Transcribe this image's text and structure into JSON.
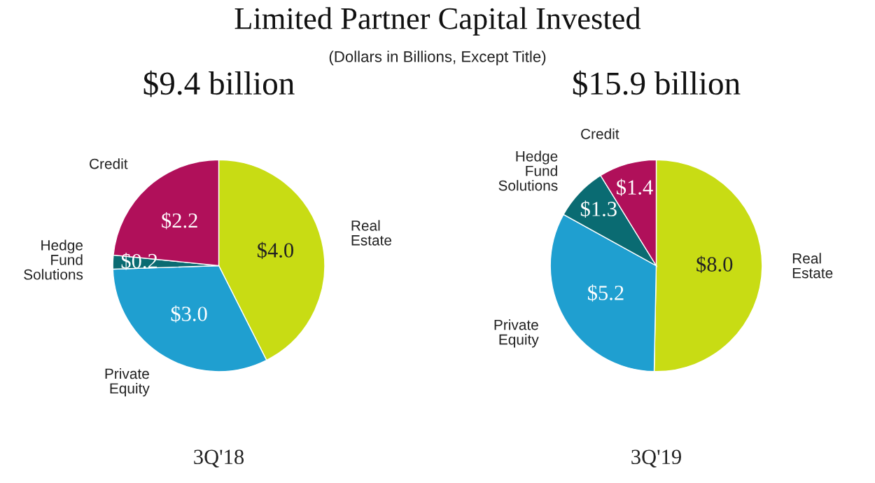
{
  "chart_data": [
    {
      "type": "pie",
      "title": "$9.4 billion",
      "xlabel": "3Q'18",
      "annotations": [
        "Limited Partner Capital Invested",
        "(Dollars in Billions, Except Title)"
      ],
      "categories": [
        "Real\nEstate",
        "Private\nEquity",
        "Hedge\nFund\nSolutions",
        "Credit"
      ],
      "values": [
        4.0,
        3.0,
        0.2,
        2.2
      ],
      "value_labels": [
        "$4.0",
        "$3.0",
        "$0.2",
        "$2.2"
      ],
      "colors": [
        "#c8dc14",
        "#1f9fd0",
        "#0a6b72",
        "#b0105a"
      ]
    },
    {
      "type": "pie",
      "title": "$15.9 billion",
      "xlabel": "3Q'19",
      "categories": [
        "Real\nEstate",
        "Private\nEquity",
        "Hedge\nFund\nSolutions",
        "Credit"
      ],
      "values": [
        8.0,
        5.2,
        1.3,
        1.4
      ],
      "value_labels": [
        "$8.0",
        "$5.2",
        "$1.3",
        "$1.4"
      ],
      "colors": [
        "#c8dc14",
        "#1f9fd0",
        "#0a6b72",
        "#b0105a"
      ]
    }
  ]
}
